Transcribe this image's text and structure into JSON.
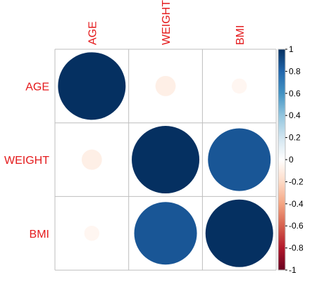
{
  "chart_data": {
    "type": "heatmap",
    "variables": [
      "AGE",
      "WEIGHT",
      "BMI"
    ],
    "matrix": [
      [
        1.0,
        -0.09,
        -0.05
      ],
      [
        -0.09,
        1.0,
        0.86
      ],
      [
        -0.05,
        0.86,
        1.0
      ]
    ],
    "glyph": "circle",
    "colorbar": {
      "min": -1,
      "max": 1,
      "ticks": [
        "1",
        "0.8",
        "0.6",
        "0.4",
        "0.2",
        "0",
        "-0.2",
        "-0.4",
        "-0.6",
        "-0.8",
        "-1"
      ],
      "colors": [
        "#67001F",
        "#B2182B",
        "#D6604D",
        "#F4A582",
        "#FDDBC7",
        "#FFFFFF",
        "#D1E5F0",
        "#92C5DE",
        "#4393C3",
        "#2166AC",
        "#053061"
      ]
    },
    "label_color": "#E41A1C",
    "grid_color": "#BEBEBE"
  }
}
